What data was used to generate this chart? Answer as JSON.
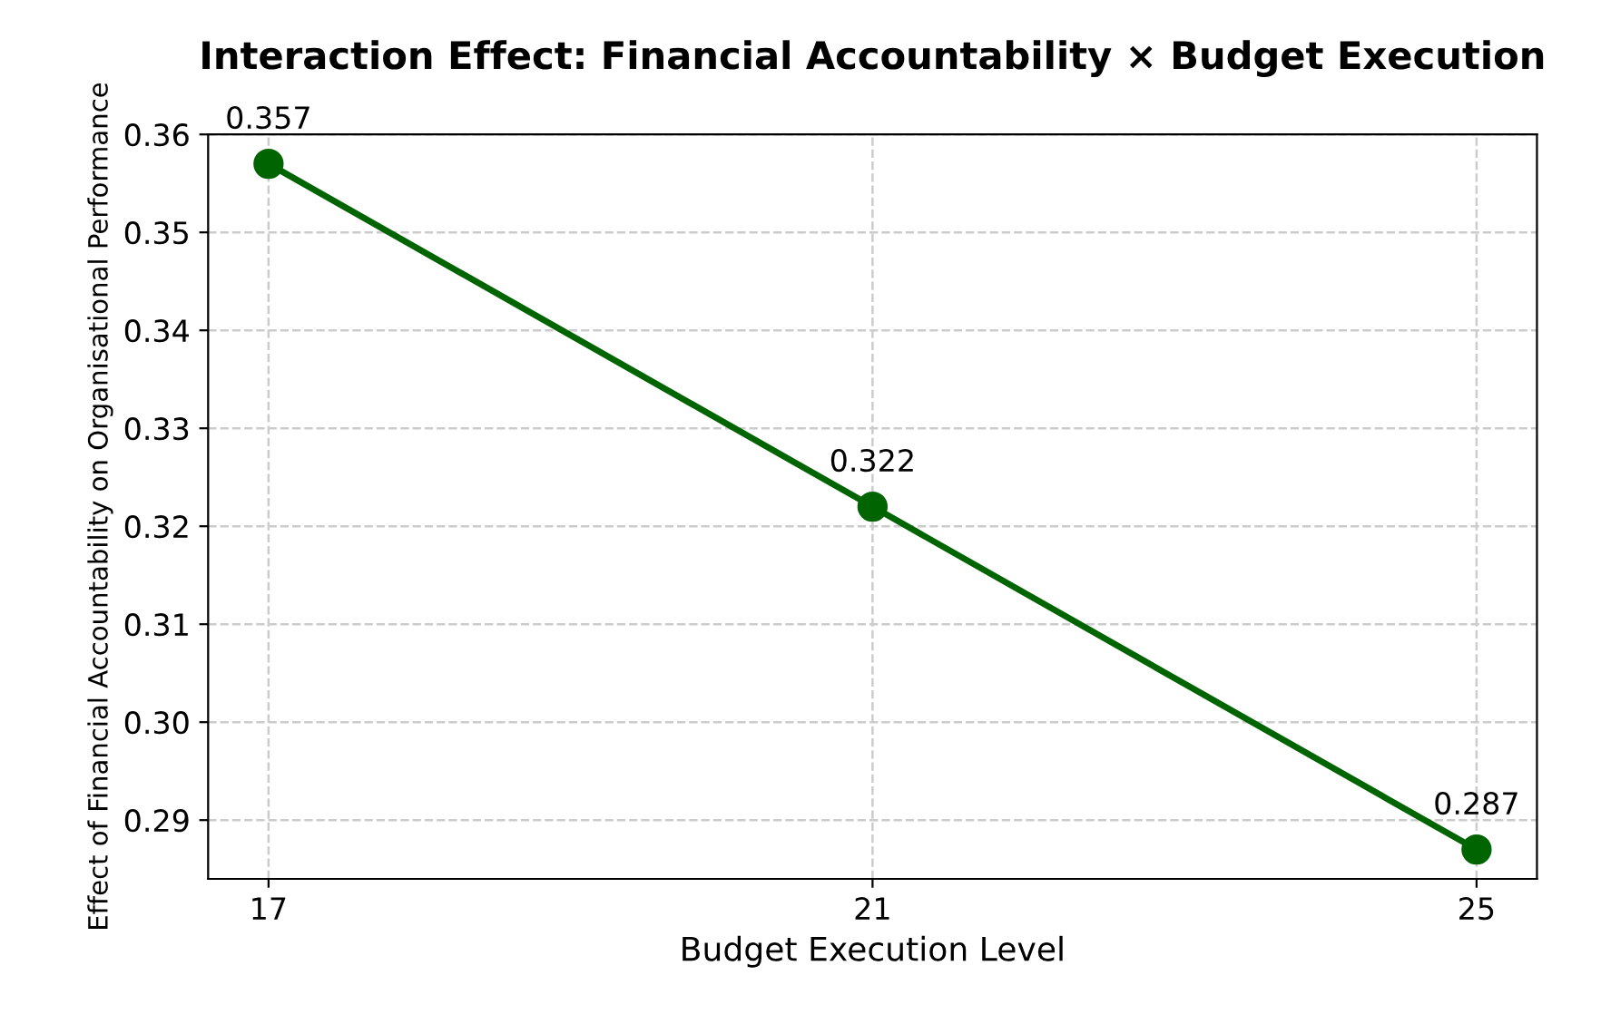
{
  "chart_data": {
    "type": "line",
    "title": "Interaction Effect: Financial Accountability × Budget Execution",
    "xlabel": "Budget Execution Level",
    "ylabel": "Effect of Financial Accountability on Organisational Performance",
    "x": [
      17,
      21,
      25
    ],
    "series": [
      {
        "color": "#006400",
        "values": [
          0.357,
          0.322,
          0.287
        ]
      }
    ],
    "xlim": [
      16.6,
      25.4
    ],
    "xticks": [
      17,
      21,
      25
    ],
    "ylim": [
      0.284,
      0.36
    ],
    "yticks": [
      0.29,
      {
        "value": 0.3,
        "label": "0.30"
      },
      0.31,
      0.32,
      0.33,
      0.34,
      0.35,
      0.36
    ],
    "grid": true,
    "marker": "circle",
    "line_style": "solid",
    "data_labels": true
  }
}
